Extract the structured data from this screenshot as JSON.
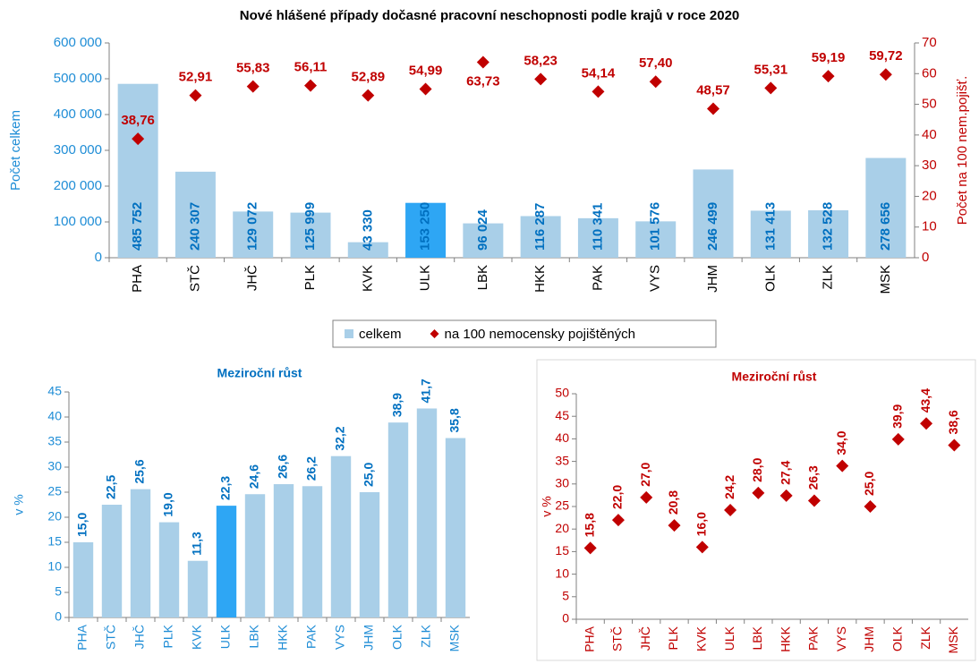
{
  "chart_data": [
    {
      "type": "combo",
      "title": "Nové hlášené případy dočasné pracovní neschopnosti podle krajů v roce 2020",
      "categories": [
        "PHA",
        "STČ",
        "JHČ",
        "PLK",
        "KVK",
        "ULK",
        "LBK",
        "HKK",
        "PAK",
        "VYS",
        "JHM",
        "OLK",
        "ZLK",
        "MSK"
      ],
      "ylabel": "Počet celkem",
      "y2label": "Počet na 100 nem.pojišť.",
      "ylim": [
        0,
        600000
      ],
      "yticks": [
        0,
        {
          "value": 100000,
          "label": "100 000"
        },
        {
          "value": 200000,
          "label": "200 000"
        },
        {
          "value": 300000,
          "label": "300 000"
        },
        {
          "value": 400000,
          "label": "400 000"
        },
        {
          "value": 500000,
          "label": "500 000"
        },
        {
          "value": 600000,
          "label": "600 000"
        }
      ],
      "y2lim": [
        0,
        70
      ],
      "y2ticks": [
        0,
        10,
        20,
        30,
        40,
        50,
        60,
        70
      ],
      "legend": "bottom",
      "series": [
        {
          "name": "celkem",
          "type": "bar",
          "color": "#a9cfe8",
          "colors": [
            "#a9cfe8",
            "#a9cfe8",
            "#a9cfe8",
            "#a9cfe8",
            "#a9cfe8",
            "#2ea6f4",
            "#a9cfe8",
            "#a9cfe8",
            "#a9cfe8",
            "#a9cfe8",
            "#a9cfe8",
            "#a9cfe8",
            "#a9cfe8",
            "#a9cfe8"
          ],
          "values": [
            485752,
            240307,
            129072,
            125999,
            43330,
            153250,
            96024,
            116287,
            110341,
            101576,
            246499,
            131413,
            132528,
            278656
          ],
          "value_labels": [
            "485 752",
            "240 307",
            "129 072",
            "125 999",
            "43 330",
            "153 250",
            "96 024",
            "116 287",
            "110 341",
            "101 576",
            "246 499",
            "131 413",
            "132 528",
            "278 656"
          ]
        },
        {
          "name": "na 100 nemocensky pojištěných",
          "type": "scatter",
          "axis": "y2",
          "color": "#c00000",
          "values": [
            38.76,
            52.91,
            55.83,
            56.11,
            52.89,
            54.99,
            63.73,
            58.23,
            54.14,
            57.4,
            48.57,
            55.31,
            59.19,
            59.72
          ],
          "value_labels": [
            "38,76",
            "52,91",
            "55,83",
            "56,11",
            "52,89",
            "54,99",
            "63,73",
            "58,23",
            "54,14",
            "57,40",
            "48,57",
            "55,31",
            "59,19",
            "59,72"
          ]
        }
      ]
    },
    {
      "type": "bar",
      "title": "Meziroční růst",
      "ylabel": "v %",
      "categories": [
        "PHA",
        "STČ",
        "JHČ",
        "PLK",
        "KVK",
        "ULK",
        "LBK",
        "HKK",
        "PAK",
        "VYS",
        "JHM",
        "OLK",
        "ZLK",
        "MSK"
      ],
      "values": [
        15.0,
        22.5,
        25.6,
        19.0,
        11.3,
        22.3,
        24.6,
        26.6,
        26.2,
        32.2,
        25.0,
        38.9,
        41.7,
        35.8
      ],
      "value_labels": [
        "15,0",
        "22,5",
        "25,6",
        "19,0",
        "11,3",
        "22,3",
        "24,6",
        "26,6",
        "26,2",
        "32,2",
        "25,0",
        "38,9",
        "41,7",
        "35,8"
      ],
      "colors": [
        "#a9cfe8",
        "#a9cfe8",
        "#a9cfe8",
        "#a9cfe8",
        "#a9cfe8",
        "#2ea6f4",
        "#a9cfe8",
        "#a9cfe8",
        "#a9cfe8",
        "#a9cfe8",
        "#a9cfe8",
        "#a9cfe8",
        "#a9cfe8",
        "#a9cfe8"
      ],
      "ylim": [
        0,
        45
      ],
      "yticks": [
        0,
        5,
        10,
        15,
        20,
        25,
        30,
        35,
        40,
        45
      ]
    },
    {
      "type": "scatter",
      "title": "Meziroční růst",
      "ylabel": "v %",
      "categories": [
        "PHA",
        "STČ",
        "JHČ",
        "PLK",
        "KVK",
        "ULK",
        "LBK",
        "HKK",
        "PAK",
        "VYS",
        "JHM",
        "OLK",
        "ZLK",
        "MSK"
      ],
      "values": [
        15.8,
        22.0,
        27.0,
        20.8,
        16.0,
        24.2,
        28.0,
        27.4,
        26.3,
        34.0,
        25.0,
        39.9,
        43.4,
        38.6
      ],
      "value_labels": [
        "15,8",
        "22,0",
        "27,0",
        "20,8",
        "16,0",
        "24,2",
        "28,0",
        "27,4",
        "26,3",
        "34,0",
        "25,0",
        "39,9",
        "43,4",
        "38,6"
      ],
      "color": "#c00000",
      "ylim": [
        0,
        50
      ],
      "yticks": [
        0,
        5,
        10,
        15,
        20,
        25,
        30,
        35,
        40,
        45,
        50
      ]
    }
  ]
}
